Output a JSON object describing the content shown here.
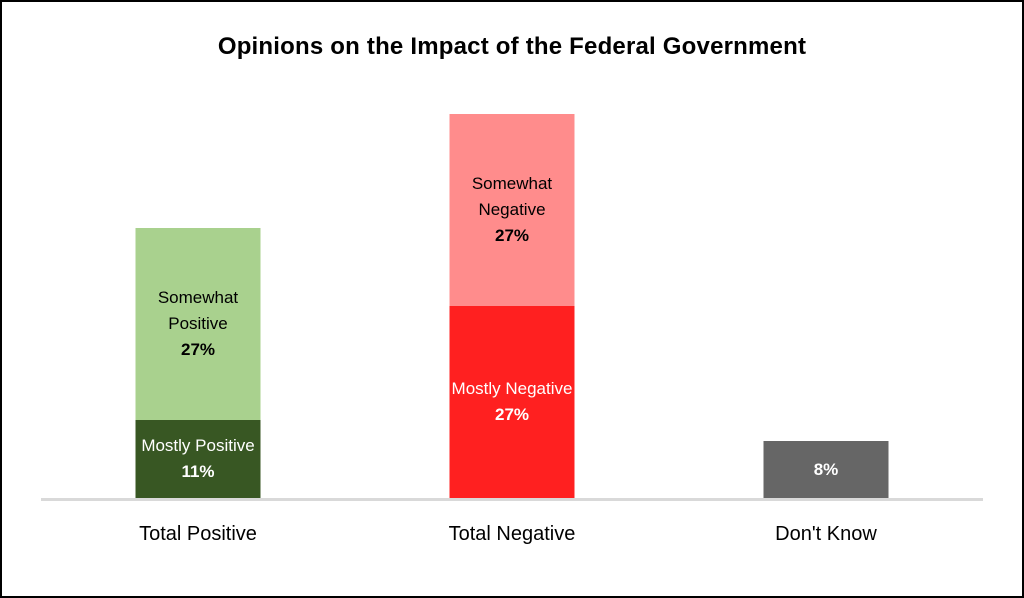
{
  "frame": {
    "background": "#FFFFFF",
    "border_color": "#000000"
  },
  "chart_data": {
    "type": "bar",
    "stacked": true,
    "orientation": "vertical",
    "title": "Opinions on the Impact of the Federal Government",
    "categories": [
      "Total Positive",
      "Total Negative",
      "Don't Know"
    ],
    "unit": "%",
    "axis": {
      "y_axis_visible": false,
      "x_tick_labels_visible": true,
      "gridlines": false,
      "legend": false,
      "baseline_color": "#D9D9D9",
      "title_color": "#000000",
      "category_label_color": "#000000"
    },
    "bars": [
      {
        "category": "Total Positive",
        "total": 38,
        "segments": [
          {
            "label": "Mostly Positive",
            "value": 11,
            "value_label": "11%",
            "color": "#385723",
            "text_color": "#FFFFFF"
          },
          {
            "label": "Somewhat Positive",
            "value": 27,
            "value_label": "27%",
            "color": "#A9D18E",
            "text_color": "#000000"
          }
        ]
      },
      {
        "category": "Total Negative",
        "total": 54,
        "segments": [
          {
            "label": "Mostly Negative",
            "value": 27,
            "value_label": "27%",
            "color": "#FF2020",
            "text_color": "#FFFFFF"
          },
          {
            "label": "Somewhat Negative",
            "value": 27,
            "value_label": "27%",
            "color": "#FF8C8C",
            "text_color": "#000000"
          }
        ]
      },
      {
        "category": "Don't Know",
        "total": 8,
        "segments": [
          {
            "label": "",
            "value": 8,
            "value_label": "8%",
            "color": "#666666",
            "text_color": "#FFFFFF"
          }
        ]
      }
    ]
  }
}
